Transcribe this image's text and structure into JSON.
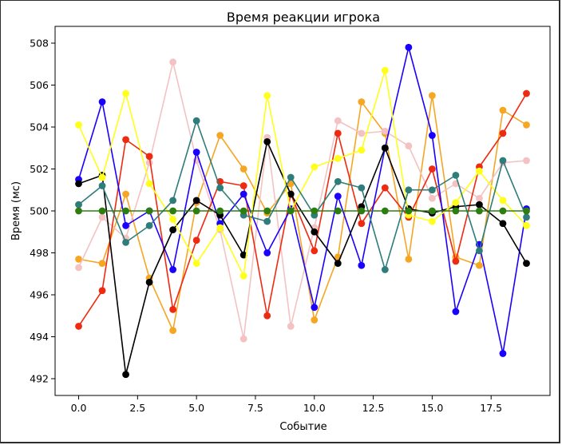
{
  "chart_data": {
    "type": "line",
    "title": "Время реакции игрока",
    "xlabel": "Событие",
    "ylabel": "Время (мс)",
    "xlim": [
      -1,
      20
    ],
    "ylim": [
      491.2,
      508.8
    ],
    "xticks": [
      0.0,
      2.5,
      5.0,
      7.5,
      10.0,
      12.5,
      15.0,
      17.5
    ],
    "xtick_labels": [
      "0.0",
      "2.5",
      "5.0",
      "7.5",
      "10.0",
      "12.5",
      "15.0",
      "17.5"
    ],
    "yticks": [
      492,
      494,
      496,
      498,
      500,
      502,
      504,
      506,
      508
    ],
    "ytick_labels": [
      "492",
      "494",
      "496",
      "498",
      "500",
      "502",
      "504",
      "506",
      "508"
    ],
    "grid": false,
    "legend": false,
    "x": [
      0,
      1,
      2,
      3,
      4,
      5,
      6,
      7,
      8,
      9,
      10,
      11,
      12,
      13,
      14,
      15,
      16,
      17,
      18,
      19
    ],
    "series": [
      {
        "color": "#f5a623",
        "values": [
          497.7,
          497.5,
          500.8,
          496.8,
          494.3,
          500.4,
          503.6,
          502.0,
          499.9,
          501.3,
          494.8,
          497.8,
          505.2,
          503.7,
          497.7,
          505.5,
          497.8,
          497.4,
          504.8,
          504.1
        ]
      },
      {
        "color": "#f4c2c2",
        "values": [
          497.3,
          499.7,
          498.7,
          502.3,
          507.1,
          502.4,
          499.1,
          493.9,
          503.5,
          494.5,
          499.2,
          504.3,
          503.7,
          503.8,
          503.1,
          500.6,
          501.3,
          500.6,
          502.3,
          502.4
        ]
      },
      {
        "color": "#ee2a10",
        "values": [
          494.5,
          496.2,
          503.4,
          502.6,
          495.3,
          498.6,
          501.4,
          501.2,
          495.0,
          500.8,
          498.1,
          503.7,
          499.4,
          501.1,
          499.7,
          502.0,
          497.6,
          502.1,
          503.7,
          505.6
        ]
      },
      {
        "color": "#1a00ff",
        "values": [
          501.5,
          505.2,
          499.3,
          500.0,
          497.2,
          502.8,
          499.4,
          500.8,
          498.0,
          500.1,
          495.4,
          500.7,
          497.4,
          503.0,
          507.8,
          503.6,
          495.2,
          498.4,
          493.2,
          500.1
        ]
      },
      {
        "color": "#000000",
        "values": [
          501.3,
          501.7,
          492.2,
          496.6,
          499.1,
          500.5,
          499.8,
          497.9,
          503.3,
          500.8,
          499.0,
          497.5,
          500.2,
          503.0,
          500.1,
          499.9,
          500.2,
          500.3,
          499.4,
          497.5
        ]
      },
      {
        "color": "#ffff1a",
        "values": [
          504.1,
          501.6,
          505.6,
          501.3,
          499.6,
          497.5,
          499.2,
          496.9,
          505.5,
          500.0,
          502.1,
          502.5,
          502.9,
          506.7,
          499.8,
          499.5,
          500.4,
          501.9,
          500.5,
          499.3
        ]
      },
      {
        "color": "#2e7d7a",
        "values": [
          500.3,
          501.2,
          498.5,
          499.3,
          500.5,
          504.3,
          501.1,
          499.8,
          499.5,
          501.6,
          499.8,
          501.4,
          501.1,
          497.2,
          501.0,
          501.0,
          501.7,
          498.1,
          502.4,
          499.7
        ]
      },
      {
        "color": "#2e7d10",
        "values": [
          500.0,
          500.0,
          500.0,
          500.0,
          500.0,
          500.0,
          500.0,
          500.0,
          500.0,
          500.0,
          500.0,
          500.0,
          500.0,
          500.0,
          500.0,
          500.0,
          500.0,
          500.0,
          500.0,
          500.0
        ]
      }
    ]
  }
}
